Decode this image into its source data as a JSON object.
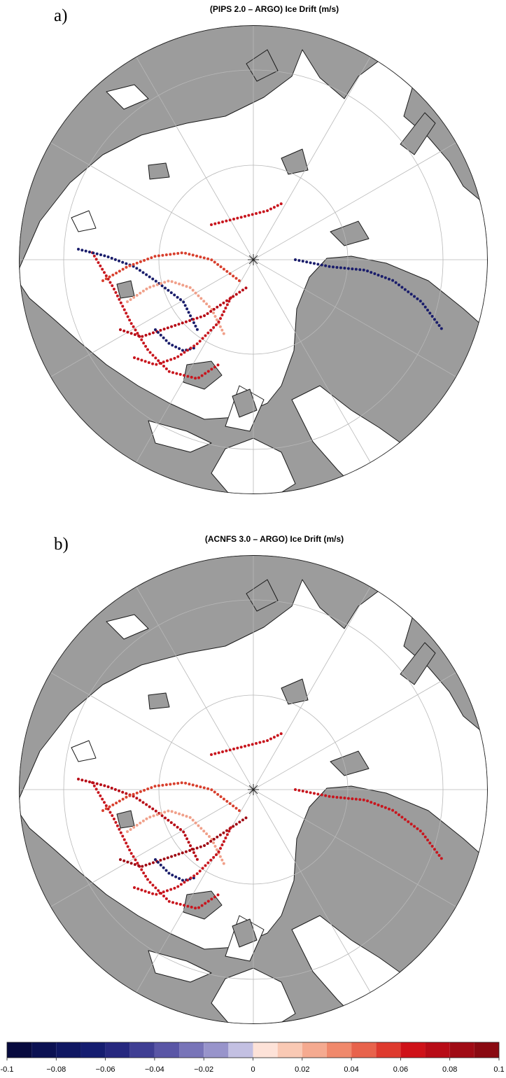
{
  "panels": [
    {
      "label": "a)",
      "title": "(PIPS 2.0 – ARGO) Ice Drift (m/s)"
    },
    {
      "label": "b)",
      "title": "(ACNFS 3.0 – ARGO) Ice Drift (m/s)"
    }
  ],
  "chart_data": {
    "type": "colorbar",
    "bins": [
      -0.1,
      -0.09,
      -0.08,
      -0.07,
      -0.06,
      -0.05,
      -0.04,
      -0.03,
      -0.02,
      -0.01,
      0,
      0.01,
      0.02,
      0.03,
      0.04,
      0.05,
      0.06,
      0.07,
      0.08,
      0.09,
      0.1
    ],
    "colors": [
      "#070a3e",
      "#0b1152",
      "#0f1762",
      "#151d70",
      "#26287f",
      "#3f3e93",
      "#5a56a6",
      "#7874b8",
      "#9894cb",
      "#c3c0e2",
      "#fde2d8",
      "#f9c9b4",
      "#f5aa90",
      "#f0896c",
      "#e8634c",
      "#de3a2e",
      "#cf1219",
      "#b80c17",
      "#a00b15",
      "#8a0a12"
    ],
    "xlim": [
      -0.1,
      0.1
    ],
    "xticks": [
      -0.1,
      {
        "value": -0.08,
        "label": "−0.08"
      },
      {
        "value": -0.06,
        "label": "−0.06"
      },
      {
        "value": -0.04,
        "label": "−0.04"
      },
      {
        "value": -0.02,
        "label": "−0.02"
      },
      0,
      0.02,
      0.04,
      0.06,
      0.08,
      0.1
    ]
  }
}
